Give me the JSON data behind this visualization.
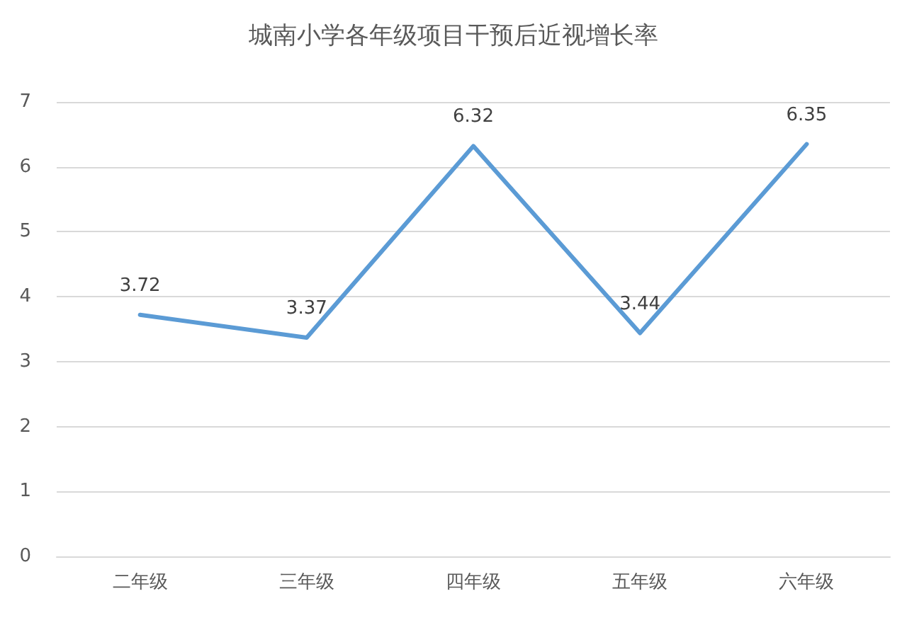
{
  "chart_data": {
    "type": "line",
    "title": "城南小学各年级项目干预后近视增长率",
    "categories": [
      "二年级",
      "三年级",
      "四年级",
      "五年级",
      "六年级"
    ],
    "series": [
      {
        "color": "#5b9bd5",
        "values": [
          3.72,
          3.37,
          6.32,
          3.44,
          6.35
        ]
      }
    ],
    "ylim": [
      0,
      7
    ],
    "yticks": [
      0,
      1,
      2,
      3,
      4,
      5,
      6,
      7
    ],
    "grid": "y",
    "data_labels": true,
    "marker": "none",
    "line_style": "solid"
  }
}
